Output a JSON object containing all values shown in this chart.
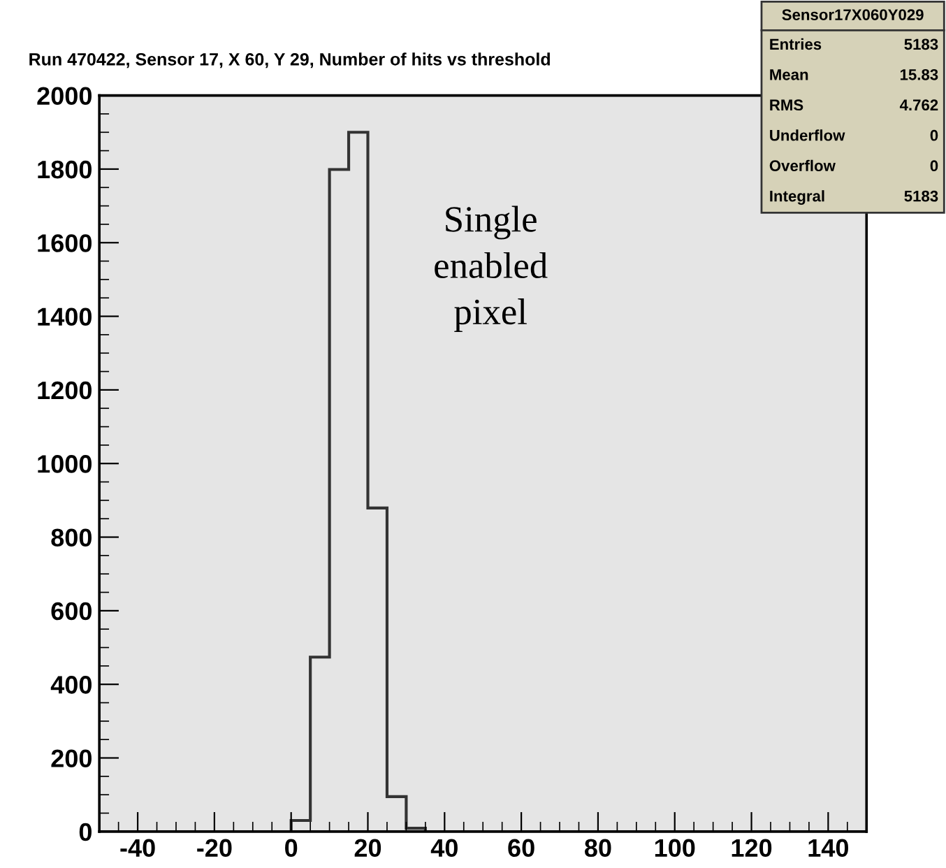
{
  "chart_data": {
    "type": "histogram",
    "title": "Run 470422, Sensor 17, X 60, Y 29, Number of hits vs threshold",
    "bins": [
      0,
      5,
      10,
      15,
      20,
      25,
      30,
      35
    ],
    "values": [
      30,
      474,
      1799,
      1900,
      879,
      95,
      9
    ],
    "color": "#333333",
    "xlim": [
      -50,
      150
    ],
    "xticks": [
      -40,
      -20,
      0,
      20,
      40,
      60,
      80,
      100,
      120,
      140
    ],
    "ylim": [
      0,
      2000
    ],
    "yticks": [
      0,
      200,
      400,
      600,
      800,
      1000,
      1200,
      1400,
      1600,
      1800,
      2000
    ],
    "annotations": [
      "Single\nenabled\npixel",
      "Sensor17X060Y029",
      "Entries",
      "5183",
      "Mean",
      "15.83",
      "RMS",
      "4.762",
      "Underflow",
      "0",
      "Overflow",
      "0",
      "Integral",
      "5183"
    ]
  }
}
